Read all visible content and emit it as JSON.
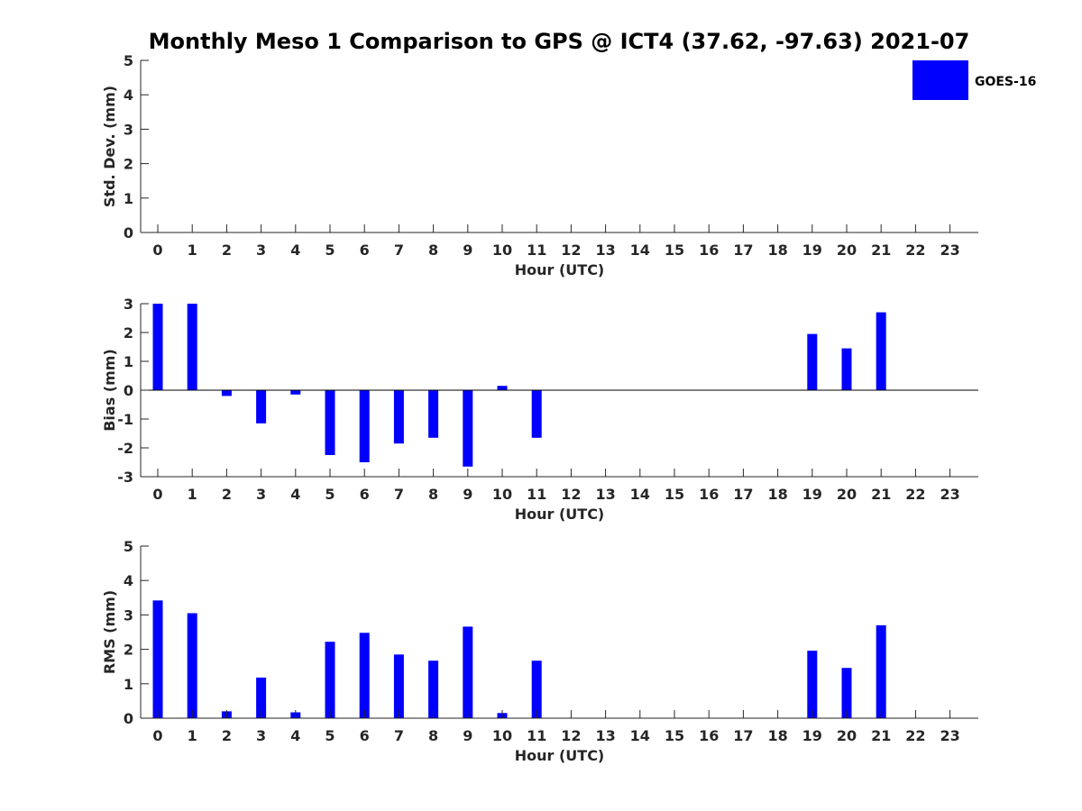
{
  "title": "Monthly Meso 1 Comparison to GPS @ ICT4 (37.62, -97.63) 2021-07",
  "legend": {
    "label": "GOES-16",
    "color": "#0000ff"
  },
  "chart_data": [
    {
      "type": "bar",
      "ylabel": "Std. Dev. (mm)",
      "xlabel": "Hour (UTC)",
      "ylim": [
        0,
        5
      ],
      "yticks": [
        0,
        1,
        2,
        3,
        4,
        5
      ],
      "categories": [
        "0",
        "1",
        "2",
        "3",
        "4",
        "5",
        "6",
        "7",
        "8",
        "9",
        "10",
        "11",
        "12",
        "13",
        "14",
        "15",
        "16",
        "17",
        "18",
        "19",
        "20",
        "21",
        "22",
        "23"
      ],
      "series": [
        {
          "name": "GOES-16",
          "color": "#0000ff",
          "values": [
            null,
            null,
            null,
            null,
            null,
            null,
            null,
            null,
            null,
            null,
            null,
            null,
            null,
            null,
            null,
            null,
            null,
            null,
            null,
            null,
            null,
            null,
            null,
            null
          ]
        }
      ]
    },
    {
      "type": "bar",
      "ylabel": "Bias (mm)",
      "xlabel": "Hour (UTC)",
      "ylim": [
        -3,
        3
      ],
      "yticks": [
        -3,
        -2,
        -1,
        0,
        1,
        2,
        3
      ],
      "zero_line": true,
      "categories": [
        "0",
        "1",
        "2",
        "3",
        "4",
        "5",
        "6",
        "7",
        "8",
        "9",
        "10",
        "11",
        "12",
        "13",
        "14",
        "15",
        "16",
        "17",
        "18",
        "19",
        "20",
        "21",
        "22",
        "23"
      ],
      "series": [
        {
          "name": "GOES-16",
          "color": "#0000ff",
          "values": [
            3.0,
            3.0,
            -0.2,
            -1.15,
            -0.15,
            -2.25,
            -2.5,
            -1.85,
            -1.65,
            -2.65,
            0.15,
            -1.65,
            null,
            null,
            null,
            null,
            null,
            null,
            null,
            1.95,
            1.45,
            2.7,
            null,
            null
          ]
        }
      ]
    },
    {
      "type": "bar",
      "ylabel": "RMS (mm)",
      "xlabel": "Hour (UTC)",
      "ylim": [
        0,
        5
      ],
      "yticks": [
        0,
        1,
        2,
        3,
        4,
        5
      ],
      "categories": [
        "0",
        "1",
        "2",
        "3",
        "4",
        "5",
        "6",
        "7",
        "8",
        "9",
        "10",
        "11",
        "12",
        "13",
        "14",
        "15",
        "16",
        "17",
        "18",
        "19",
        "20",
        "21",
        "22",
        "23"
      ],
      "series": [
        {
          "name": "GOES-16",
          "color": "#0000ff",
          "values": [
            3.42,
            3.05,
            0.2,
            1.18,
            0.17,
            2.22,
            2.48,
            1.85,
            1.67,
            2.66,
            0.15,
            1.67,
            null,
            null,
            null,
            null,
            null,
            null,
            null,
            1.96,
            1.46,
            2.7,
            null,
            null
          ]
        }
      ]
    }
  ]
}
